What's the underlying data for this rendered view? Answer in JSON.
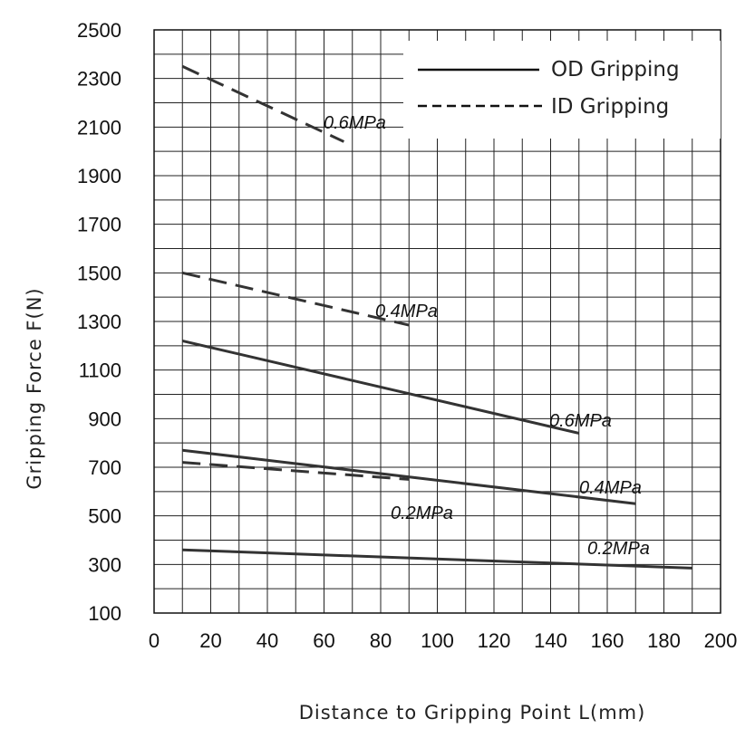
{
  "chart_data": {
    "type": "line",
    "title": "",
    "xlabel": "Distance to Gripping Point  L(mm)",
    "ylabel": "Gripping Force  F(N)",
    "xlim": [
      0,
      200
    ],
    "ylim": [
      100,
      2500
    ],
    "x_ticks": [
      "0",
      "20",
      "40",
      "60",
      "80",
      "100",
      "120",
      "140",
      "160",
      "180",
      "200"
    ],
    "y_ticks": [
      "100",
      "300",
      "500",
      "700",
      "900",
      "1100",
      "1300",
      "1500",
      "1700",
      "1900",
      "2100",
      "2300",
      "2500"
    ],
    "grid": true,
    "legend": {
      "position": "top-right",
      "entries": [
        {
          "label": "OD Gripping",
          "style": "solid"
        },
        {
          "label": "ID Gripping",
          "style": "dashed"
        }
      ]
    },
    "series": [
      {
        "group": "OD Gripping",
        "label": "0.6MPa",
        "style": "solid",
        "x": [
          10,
          150
        ],
        "y": [
          1220,
          840
        ]
      },
      {
        "group": "OD Gripping",
        "label": "0.4MPa",
        "style": "solid",
        "x": [
          10,
          170
        ],
        "y": [
          770,
          550
        ]
      },
      {
        "group": "OD Gripping",
        "label": "0.2MPa",
        "style": "solid",
        "x": [
          10,
          190
        ],
        "y": [
          360,
          285
        ]
      },
      {
        "group": "ID Gripping",
        "label": "0.6MPa",
        "style": "dashed",
        "x": [
          10,
          67
        ],
        "y": [
          2350,
          2040
        ]
      },
      {
        "group": "ID Gripping",
        "label": "0.4MPa",
        "style": "dashed",
        "x": [
          10,
          90
        ],
        "y": [
          1500,
          1285
        ]
      },
      {
        "group": "ID Gripping",
        "label": "0.2MPa",
        "style": "dashed",
        "x": [
          10,
          90
        ],
        "y": [
          720,
          650
        ]
      }
    ]
  }
}
